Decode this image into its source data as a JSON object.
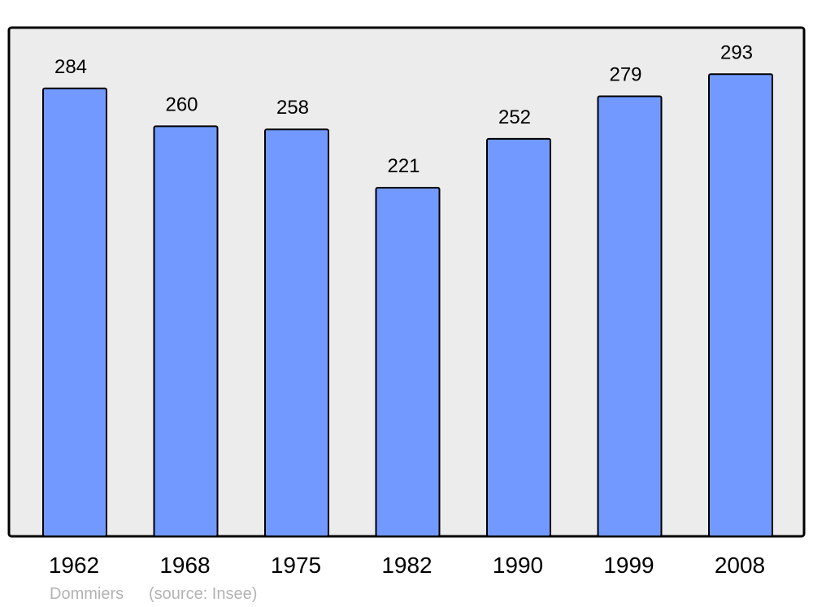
{
  "chart_data": {
    "type": "bar",
    "categories": [
      "1962",
      "1968",
      "1975",
      "1982",
      "1990",
      "1999",
      "2008"
    ],
    "values": [
      284,
      260,
      258,
      221,
      252,
      279,
      293
    ],
    "title": "",
    "xlabel": "",
    "ylabel": "",
    "ylim": [
      0,
      322
    ],
    "grid": false,
    "data_labels": true,
    "colors": {
      "bar": "#7299ff",
      "plot_background": "#ececec",
      "frame": "#000000"
    }
  },
  "footer": {
    "place": "Dommiers",
    "source": "(source: Insee)"
  }
}
